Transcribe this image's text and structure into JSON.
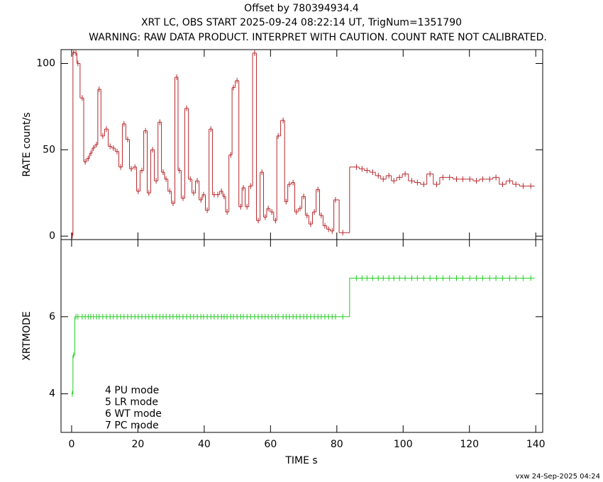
{
  "footer": "vxw 24-Sep-2025 04:24",
  "chart_data": [
    {
      "type": "step",
      "title": "Offset by 780394934.4",
      "subtitle": "XRT LC, OBS START 2025-09-24 08:22:14 UT, TrigNum=1351790",
      "warning": "WARNING: RAW DATA PRODUCT. INTERPRET WITH CAUTION. COUNT RATE NOT CALIBRATED.",
      "ylabel": "RATE  count/s",
      "xlim": [
        -3.2,
        142.1
      ],
      "ylim": [
        -2,
        108
      ],
      "yticks": [
        0,
        50,
        100
      ],
      "grid": false,
      "color": "#b8282c",
      "x": [
        0.2,
        0.6,
        1.3,
        1.9,
        3.2,
        4.1,
        5.0,
        5.8,
        6.6,
        7.5,
        8.3,
        9.4,
        10.5,
        11.6,
        12.6,
        13.7,
        14.8,
        15.8,
        16.9,
        18.0,
        19.1,
        20.1,
        21.2,
        22.3,
        23.3,
        24.4,
        25.5,
        26.6,
        27.6,
        28.5,
        29.6,
        30.6,
        31.7,
        32.5,
        33.6,
        34.7,
        35.8,
        36.8,
        37.9,
        39.0,
        39.8,
        40.9,
        42.0,
        43.0,
        44.1,
        45.2,
        46.0,
        46.9,
        48.0,
        48.8,
        49.9,
        51.0,
        51.8,
        52.9,
        54.0,
        55.2,
        56.3,
        57.4,
        58.4,
        59.3,
        60.4,
        61.5,
        62.3,
        63.8,
        64.7,
        65.7,
        66.8,
        67.8,
        68.9,
        70.0,
        71.0,
        72.1,
        73.2,
        74.3,
        75.3,
        76.4,
        77.5,
        78.6,
        79.6,
        81.8,
        85.9,
        87.6,
        89.1,
        90.8,
        92.5,
        94.0,
        95.7,
        97.2,
        98.9,
        100.6,
        102.6,
        104.3,
        106.2,
        108.1,
        110.1,
        112.0,
        114.0,
        116.1,
        118.0,
        120.1,
        122.1,
        124.0,
        126.1,
        128.0,
        130.0,
        132.1,
        134.0,
        136.2,
        138.5
      ],
      "values": [
        0.4,
        106.6,
        106,
        100,
        80,
        43,
        45,
        48,
        51,
        53,
        85,
        58,
        62,
        52,
        51,
        49,
        40,
        65,
        56,
        39,
        40,
        26,
        38,
        61,
        25,
        50,
        32,
        66,
        37,
        33,
        26,
        19,
        92,
        38,
        22,
        74,
        33,
        25,
        32,
        21,
        24,
        15,
        62,
        24,
        24,
        26,
        23,
        14,
        47,
        86,
        90,
        17,
        28,
        17,
        29,
        106,
        9,
        37,
        11,
        16,
        14,
        9,
        58,
        67,
        20,
        30,
        31,
        14,
        16,
        23,
        12,
        7,
        14,
        27,
        12,
        6,
        4,
        3,
        21,
        2,
        40,
        39,
        38,
        37,
        35,
        33,
        35,
        32,
        34,
        36,
        32,
        31,
        30,
        36,
        30,
        34,
        34,
        33,
        33,
        33,
        32,
        33,
        33,
        34,
        30,
        32,
        30,
        29,
        29
      ]
    },
    {
      "type": "step",
      "ylabel": "XRTMODE",
      "xlabel": "TIME  s",
      "xlim": [
        -3.2,
        142.1
      ],
      "ylim": [
        3,
        8
      ],
      "yticks": [
        4,
        6
      ],
      "xticks": [
        0,
        20,
        40,
        60,
        80,
        100,
        120,
        140
      ],
      "grid": false,
      "color": "#22cc22",
      "annotations": [
        "4 PU mode",
        "5 LR mode",
        "6 WT mode",
        "7 PC mode"
      ],
      "x": [
        0.2,
        0.6,
        1.3,
        1.9,
        3.2,
        4.1,
        5.0,
        5.8,
        6.6,
        7.5,
        8.3,
        9.4,
        10.5,
        11.6,
        12.6,
        13.7,
        14.8,
        15.8,
        16.9,
        18.0,
        19.1,
        20.1,
        21.2,
        22.3,
        23.3,
        24.4,
        25.5,
        26.6,
        27.6,
        28.5,
        29.6,
        30.6,
        31.7,
        32.5,
        33.6,
        34.7,
        35.8,
        36.8,
        37.9,
        39.0,
        39.8,
        40.9,
        42.0,
        43.0,
        44.1,
        45.2,
        46.0,
        46.9,
        48.0,
        48.8,
        49.9,
        51.0,
        51.8,
        52.9,
        54.0,
        55.2,
        56.3,
        57.4,
        58.4,
        59.3,
        60.4,
        61.5,
        62.3,
        63.8,
        64.7,
        65.7,
        66.8,
        67.8,
        68.9,
        70.0,
        71.0,
        72.1,
        73.2,
        74.3,
        75.3,
        76.4,
        77.5,
        78.6,
        79.6,
        81.8,
        85.9,
        87.6,
        89.1,
        90.8,
        92.5,
        94.0,
        95.7,
        97.2,
        98.9,
        100.6,
        102.6,
        104.3,
        106.2,
        108.1,
        110.1,
        112.0,
        114.0,
        116.1,
        118.0,
        120.1,
        122.1,
        124.0,
        126.1,
        128.0,
        130.0,
        132.1,
        134.0,
        136.2,
        138.5
      ],
      "values": [
        4,
        5,
        6,
        6,
        6,
        6,
        6,
        6,
        6,
        6,
        6,
        6,
        6,
        6,
        6,
        6,
        6,
        6,
        6,
        6,
        6,
        6,
        6,
        6,
        6,
        6,
        6,
        6,
        6,
        6,
        6,
        6,
        6,
        6,
        6,
        6,
        6,
        6,
        6,
        6,
        6,
        6,
        6,
        6,
        6,
        6,
        6,
        6,
        6,
        6,
        6,
        6,
        6,
        6,
        6,
        6,
        6,
        6,
        6,
        6,
        6,
        6,
        6,
        6,
        6,
        6,
        6,
        6,
        6,
        6,
        6,
        6,
        6,
        6,
        6,
        6,
        6,
        6,
        6,
        6,
        7,
        7,
        7,
        7,
        7,
        7,
        7,
        7,
        7,
        7,
        7,
        7,
        7,
        7,
        7,
        7,
        7,
        7,
        7,
        7,
        7,
        7,
        7,
        7,
        7,
        7,
        7,
        7,
        7
      ]
    }
  ]
}
